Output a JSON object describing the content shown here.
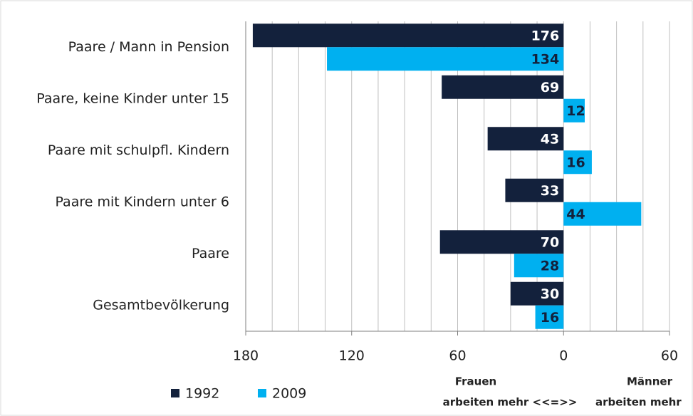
{
  "chart_data": {
    "type": "bar",
    "orientation": "horizontal",
    "categories": [
      "Paare / Mann in Pension",
      "Paare, keine Kinder unter 15",
      "Paare mit schulpfl. Kindern",
      "Paare mit Kindern unter 6",
      "Paare",
      "Gesamtbevölkerung"
    ],
    "series": [
      {
        "name": "1992",
        "color": "#13213c",
        "label_color": "#ffffff",
        "values": [
          -176,
          -69,
          -43,
          -33,
          -70,
          -30
        ],
        "value_labels": [
          "176",
          "69",
          "43",
          "33",
          "70",
          "30"
        ]
      },
      {
        "name": "2009",
        "color": "#00b0f0",
        "label_color": "#13213c",
        "values": [
          -134,
          12,
          16,
          44,
          -28,
          -16
        ],
        "value_labels": [
          "134",
          "12",
          "16",
          "44",
          "28",
          "16"
        ]
      }
    ],
    "xlim": [
      -180,
      60
    ],
    "xticks": [
      {
        "value": -180,
        "label": "180"
      },
      {
        "value": -120,
        "label": "120"
      },
      {
        "value": -60,
        "label": "60"
      },
      0,
      60
    ],
    "minor_xticks": [
      -165,
      -150,
      -135,
      -105,
      -90,
      -75,
      -45,
      -30,
      -15,
      15,
      30,
      45
    ],
    "grid": true,
    "legend": "bottom-left",
    "annotations": [
      "Frauen",
      "arbeiten mehr <<=>>",
      "Männer",
      "arbeiten mehr"
    ]
  }
}
